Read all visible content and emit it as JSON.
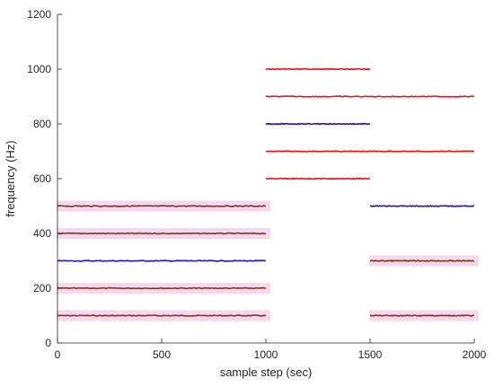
{
  "chart_data": {
    "type": "line",
    "title": "",
    "xlabel": "sample step (sec)",
    "ylabel": "frequency (Hz)",
    "xlim": [
      0,
      2000
    ],
    "ylim": [
      0,
      1200
    ],
    "xticks": [
      0,
      500,
      1000,
      1500,
      2000
    ],
    "yticks": [
      0,
      200,
      400,
      600,
      800,
      1000,
      1200
    ],
    "grid": false,
    "legend": "none",
    "colors": {
      "red": "#e8141c",
      "blue": "#2a14b4",
      "brown": "#7a3a14",
      "band": "#f7d6ef",
      "axis": "#262626"
    },
    "segments": [
      {
        "x": [
          0,
          1000
        ],
        "y": 100,
        "color": "brown",
        "band": true
      },
      {
        "x": [
          0,
          1000
        ],
        "y": 200,
        "color": "brown",
        "band": true
      },
      {
        "x": [
          0,
          1000
        ],
        "y": 300,
        "color": "blue",
        "band": false
      },
      {
        "x": [
          0,
          1000
        ],
        "y": 400,
        "color": "brown",
        "band": true
      },
      {
        "x": [
          0,
          1000
        ],
        "y": 500,
        "color": "brown",
        "band": true
      },
      {
        "x": [
          1000,
          1500
        ],
        "y": 600,
        "color": "red",
        "band": false
      },
      {
        "x": [
          1000,
          2000
        ],
        "y": 700,
        "color": "red",
        "band": false
      },
      {
        "x": [
          1000,
          1500
        ],
        "y": 800,
        "color": "blue",
        "band": false
      },
      {
        "x": [
          1000,
          2000
        ],
        "y": 900,
        "color": "red",
        "band": false
      },
      {
        "x": [
          1000,
          1500
        ],
        "y": 1000,
        "color": "red",
        "band": false
      },
      {
        "x": [
          1500,
          2000
        ],
        "y": 100,
        "color": "brown",
        "band": true
      },
      {
        "x": [
          1500,
          2000
        ],
        "y": 300,
        "color": "brown",
        "band": true
      },
      {
        "x": [
          1500,
          2000
        ],
        "y": 500,
        "color": "blue",
        "band": false
      }
    ]
  }
}
